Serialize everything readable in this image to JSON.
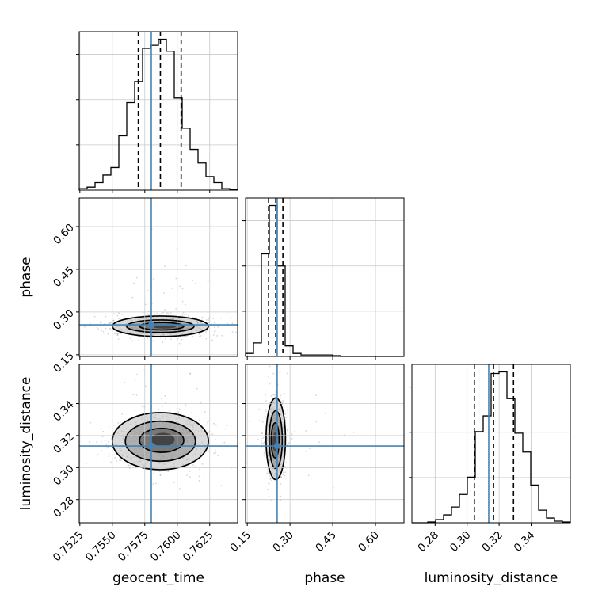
{
  "chart_data": {
    "type": "corner",
    "parameters": [
      "geocent_time",
      "phase",
      "luminosity_distance"
    ],
    "truths": {
      "geocent_time": 0.758,
      "phase": 0.255,
      "luminosity_distance": 0.3135
    },
    "quantiles": {
      "geocent_time": [
        0.757,
        0.7587,
        0.7603
      ],
      "phase": [
        0.225,
        0.25,
        0.275
      ],
      "luminosity_distance": [
        0.3045,
        0.3165,
        0.329
      ]
    },
    "ranges": {
      "geocent_time": [
        0.75245,
        0.76465
      ],
      "phase": [
        0.144,
        0.7
      ],
      "luminosity_distance": [
        0.2655,
        0.3645
      ]
    },
    "ticks": {
      "geocent_time": [
        "0.7525",
        "0.7550",
        "0.7575",
        "0.7600",
        "0.7625"
      ],
      "phase": [
        "0.15",
        "0.30",
        "0.45",
        "0.60"
      ],
      "luminosity_distance": [
        "0.28",
        "0.30",
        "0.32",
        "0.34"
      ]
    },
    "histograms": {
      "geocent_time": {
        "bin_edges": [
          0.75245,
          0.75306,
          0.75367,
          0.75428,
          0.75489,
          0.7555,
          0.75611,
          0.75672,
          0.75733,
          0.75794,
          0.75855,
          0.75916,
          0.75977,
          0.76038,
          0.76099,
          0.7616,
          0.76221,
          0.76282,
          0.76343,
          0.76404,
          0.76465
        ],
        "counts": [
          0.01,
          0.02,
          0.05,
          0.1,
          0.15,
          0.36,
          0.58,
          0.72,
          0.94,
          0.96,
          1.0,
          0.92,
          0.61,
          0.41,
          0.27,
          0.18,
          0.09,
          0.05,
          0.01,
          0.005
        ]
      },
      "phase": {
        "bin_edges": [
          0.144,
          0.1718,
          0.1996,
          0.2274,
          0.2552,
          0.283,
          0.3108,
          0.3386,
          0.3664,
          0.3942,
          0.422,
          0.4498,
          0.4776,
          0.5054,
          0.5332,
          0.561,
          0.5888,
          0.6166,
          0.6444,
          0.6722,
          0.7
        ],
        "counts": [
          0.02,
          0.09,
          0.68,
          1.0,
          0.6,
          0.07,
          0.02,
          0.01,
          0.01,
          0.01,
          0.01,
          0.005,
          0,
          0,
          0,
          0,
          0,
          0,
          0,
          0
        ]
      },
      "luminosity_distance": {
        "bin_edges": [
          0.2655,
          0.27045,
          0.2754,
          0.28035,
          0.2853,
          0.29025,
          0.2952,
          0.30015,
          0.3051,
          0.31005,
          0.315,
          0.31995,
          0.3249,
          0.32985,
          0.3348,
          0.33975,
          0.3447,
          0.34965,
          0.3546,
          0.35955,
          0.3645
        ],
        "counts": [
          0,
          0,
          0.005,
          0.02,
          0.05,
          0.1,
          0.18,
          0.29,
          0.58,
          0.68,
          0.95,
          0.96,
          0.79,
          0.57,
          0.45,
          0.24,
          0.08,
          0.03,
          0.01,
          0.005
        ]
      }
    },
    "contours": {
      "phase_vs_geocent_time": [
        {
          "cx": 0.7587,
          "cy": 0.25,
          "rx": 0.0037,
          "ry": 0.036
        },
        {
          "cx": 0.7587,
          "cy": 0.25,
          "rx": 0.0026,
          "ry": 0.022
        },
        {
          "cx": 0.7588,
          "cy": 0.25,
          "rx": 0.0017,
          "ry": 0.013
        },
        {
          "cx": 0.759,
          "cy": 0.249,
          "rx": 0.0009,
          "ry": 0.007
        }
      ],
      "luminosity_distance_vs_geocent_time": [
        {
          "cx": 0.7587,
          "cy": 0.3165,
          "rx": 0.0037,
          "ry": 0.0178
        },
        {
          "cx": 0.7587,
          "cy": 0.3165,
          "rx": 0.0027,
          "ry": 0.0125
        },
        {
          "cx": 0.7588,
          "cy": 0.317,
          "rx": 0.0017,
          "ry": 0.0075
        },
        {
          "cx": 0.7589,
          "cy": 0.3175,
          "rx": 0.0009,
          "ry": 0.0042
        }
      ],
      "luminosity_distance_vs_phase": [
        {
          "cx": 0.25,
          "cy": 0.318,
          "rx": 0.034,
          "ry": 0.0255
        },
        {
          "cx": 0.25,
          "cy": 0.3175,
          "rx": 0.023,
          "ry": 0.018
        },
        {
          "cx": 0.248,
          "cy": 0.317,
          "rx": 0.014,
          "ry": 0.011
        },
        {
          "cx": 0.247,
          "cy": 0.316,
          "rx": 0.008,
          "ry": 0.006
        }
      ]
    }
  }
}
